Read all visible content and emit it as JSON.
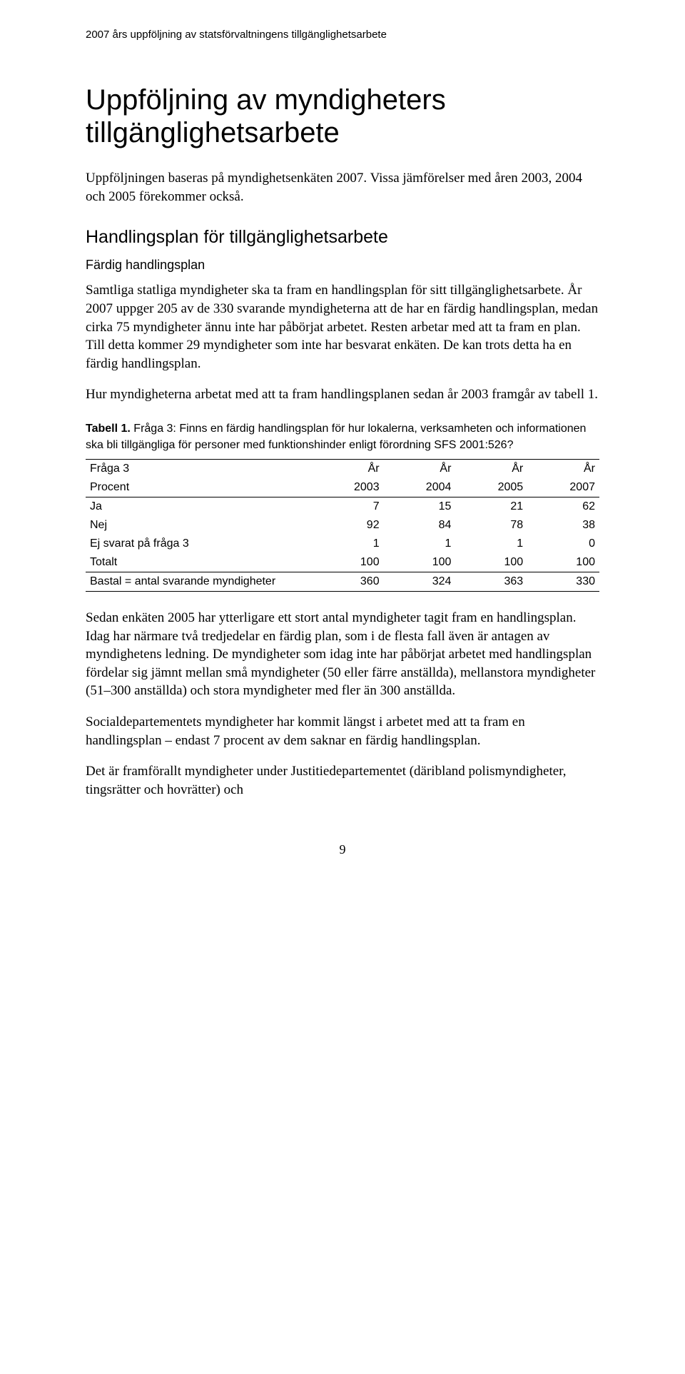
{
  "header": "2007 års uppföljning av statsförvaltningens tillgänglighetsarbete",
  "title": "Uppföljning av myndigheters tillgänglighetsarbete",
  "intro": "Uppföljningen baseras på myndighetsenkäten 2007. Vissa jämförelser med åren 2003, 2004 och 2005 förekommer också.",
  "h2": "Handlingsplan för tillgänglighetsarbete",
  "h3": "Färdig handlingsplan",
  "p1": "Samtliga statliga myndigheter ska ta fram en handlingsplan för sitt tillgänglighetsarbete. År 2007 uppger 205 av de 330 svarande myndigheterna att de har en färdig handlingsplan, medan cirka 75 myndigheter ännu inte har påbörjat arbetet. Resten arbetar med att ta fram en plan. Till detta kommer 29 myndigheter som inte har besvarat enkäten. De kan trots detta ha en färdig handlingsplan.",
  "p2": "Hur myndigheterna arbetat med att ta fram handlingsplanen sedan år 2003 framgår av tabell 1.",
  "table_caption_bold": "Tabell 1.",
  "table_caption_rest": " Fråga 3: Finns en färdig handlingsplan för hur lokalerna, verksamheten och informationen ska bli tillgängliga för personer med funktionshinder enligt förordning SFS 2001:526?",
  "table": {
    "head_row1": {
      "c0": "Fråga 3",
      "c1": "År",
      "c2": "År",
      "c3": "År",
      "c4": "År"
    },
    "head_row2": {
      "c0": "Procent",
      "c1": "2003",
      "c2": "2004",
      "c3": "2005",
      "c4": "2007"
    },
    "rows": {
      "ja": {
        "c0": "Ja",
        "c1": "7",
        "c2": "15",
        "c3": "21",
        "c4": "62"
      },
      "nej": {
        "c0": "Nej",
        "c1": "92",
        "c2": "84",
        "c3": "78",
        "c4": "38"
      },
      "ej": {
        "c0": "Ej svarat på fråga 3",
        "c1": "1",
        "c2": "1",
        "c3": "1",
        "c4": "0"
      },
      "tot": {
        "c0": "Totalt",
        "c1": "100",
        "c2": "100",
        "c3": "100",
        "c4": "100"
      },
      "bastal": {
        "c0": "Bastal = antal svarande myndigheter",
        "c1": "360",
        "c2": "324",
        "c3": "363",
        "c4": "330"
      }
    }
  },
  "p3": "Sedan enkäten 2005 har ytterligare ett stort antal myndigheter tagit fram en handlingsplan. Idag har närmare två tredjedelar en färdig plan, som i de flesta fall även är antagen av myndighetens ledning. De myndigheter som idag inte har påbörjat arbetet med handlingsplan fördelar sig jämnt mellan små myndigheter (50 eller färre anställda), mellanstora myndigheter (51–300 anställda) och stora myndigheter med fler än 300 anställda.",
  "p4": "Socialdepartementets myndigheter har kommit längst i arbetet med att ta fram en handlingsplan – endast 7 procent av dem saknar en färdig handlingsplan.",
  "p5": "Det är framförallt myndigheter under Justitiedepartementet (däribland polismyndigheter, tingsrätter och hovrätter) och",
  "page_number": "9"
}
